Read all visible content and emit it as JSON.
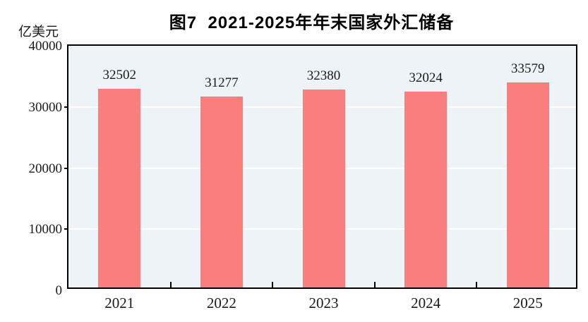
{
  "chart_data": {
    "type": "bar",
    "title": "图7  2021-2025年年末国家外汇储备",
    "unit_label": "亿美元",
    "categories": [
      "2021",
      "2022",
      "2023",
      "2024",
      "2025"
    ],
    "values": [
      32502,
      31277,
      32380,
      32024,
      33579
    ],
    "ylim": [
      0,
      40000
    ],
    "ytick_step": 10000,
    "yticks": [
      0,
      10000,
      20000,
      30000,
      40000
    ],
    "grid": true,
    "legend": "none",
    "data_labels": "above-bars",
    "colors": {
      "bar": "#FB7E7E",
      "plot_background": "#EDF3F6",
      "gridline": "#FFFFFF",
      "axis": "#000000",
      "text": "#1A1A1A"
    }
  }
}
